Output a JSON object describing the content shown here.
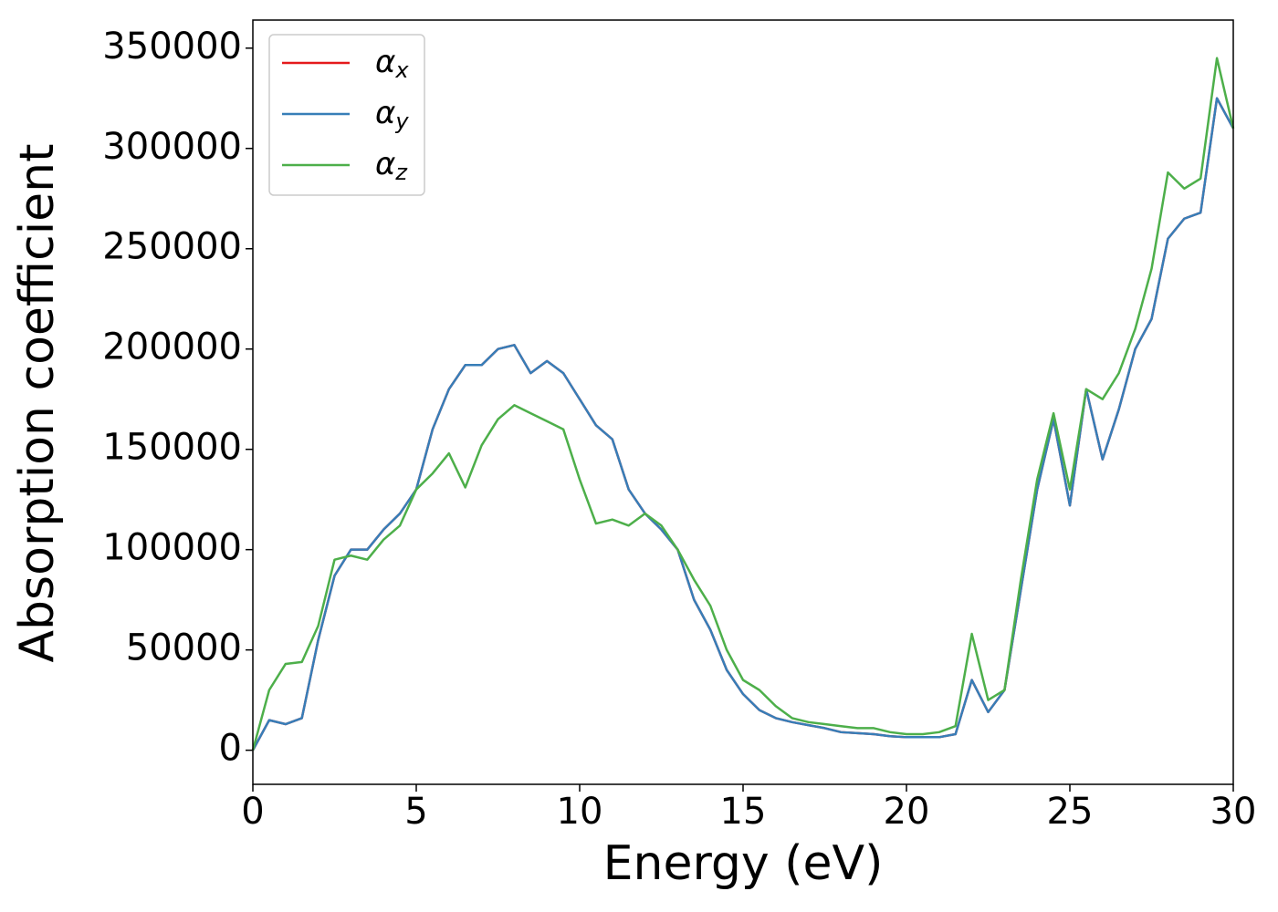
{
  "chart_data": {
    "type": "line",
    "xlabel": "Energy (eV)",
    "ylabel": "Absorption coefficient",
    "x": [
      0,
      0.5,
      1,
      1.5,
      2,
      2.5,
      3,
      3.5,
      4,
      4.5,
      5,
      5.5,
      6,
      6.5,
      7,
      7.5,
      8,
      8.5,
      9,
      9.5,
      10,
      10.5,
      11,
      11.5,
      12,
      12.5,
      13,
      13.5,
      14,
      14.5,
      15,
      15.5,
      16,
      16.5,
      17,
      17.5,
      18,
      18.5,
      19,
      19.5,
      20,
      20.5,
      21,
      21.5,
      22,
      22.5,
      23,
      23.5,
      24,
      24.5,
      25,
      25.5,
      26,
      26.5,
      27,
      27.5,
      28,
      28.5,
      29,
      29.5,
      30
    ],
    "series": [
      {
        "name": "αx",
        "color": "#e41a1c",
        "values": [
          0,
          15000,
          13000,
          16000,
          55000,
          87000,
          100000,
          100000,
          110000,
          118000,
          130000,
          160000,
          180000,
          192000,
          192000,
          200000,
          202000,
          188000,
          194000,
          188000,
          175000,
          162000,
          155000,
          130000,
          118000,
          110000,
          100000,
          75000,
          60000,
          40000,
          28000,
          20000,
          16000,
          14000,
          12500,
          11000,
          9000,
          8500,
          8000,
          7000,
          6500,
          6500,
          6500,
          8000,
          35000,
          19000,
          30000,
          80000,
          130000,
          165000,
          122000,
          180000,
          145000,
          170000,
          200000,
          215000,
          255000,
          265000,
          268000,
          325000,
          310000
        ]
      },
      {
        "name": "αy",
        "color": "#377eb8",
        "values": [
          0,
          15000,
          13000,
          16000,
          55000,
          87000,
          100000,
          100000,
          110000,
          118000,
          130000,
          160000,
          180000,
          192000,
          192000,
          200000,
          202000,
          188000,
          194000,
          188000,
          175000,
          162000,
          155000,
          130000,
          118000,
          110000,
          100000,
          75000,
          60000,
          40000,
          28000,
          20000,
          16000,
          14000,
          12500,
          11000,
          9000,
          8500,
          8000,
          7000,
          6500,
          6500,
          6500,
          8000,
          35000,
          19000,
          30000,
          80000,
          130000,
          165000,
          122000,
          180000,
          145000,
          170000,
          200000,
          215000,
          255000,
          265000,
          268000,
          325000,
          310000
        ]
      },
      {
        "name": "αz",
        "color": "#4daf4a",
        "values": [
          0,
          30000,
          43000,
          44000,
          62000,
          95000,
          97000,
          95000,
          105000,
          112000,
          130000,
          138000,
          148000,
          131000,
          152000,
          165000,
          172000,
          168000,
          164000,
          160000,
          135000,
          113000,
          115000,
          112000,
          118000,
          112000,
          100000,
          85000,
          72000,
          50000,
          35000,
          30000,
          22000,
          16000,
          14000,
          13000,
          12000,
          11000,
          11000,
          9000,
          8000,
          8000,
          9000,
          12000,
          58000,
          25000,
          30000,
          85000,
          135000,
          168000,
          130000,
          180000,
          175000,
          188000,
          210000,
          240000,
          288000,
          280000,
          285000,
          345000,
          310000
        ]
      }
    ],
    "xlim": [
      0,
      30
    ],
    "xticks": [
      0,
      5,
      10,
      15,
      20,
      25,
      30
    ],
    "ylim": [
      -17000,
      364000
    ],
    "yticks": [
      0,
      50000,
      100000,
      150000,
      200000,
      250000,
      300000,
      350000
    ],
    "legend": "upper left"
  }
}
